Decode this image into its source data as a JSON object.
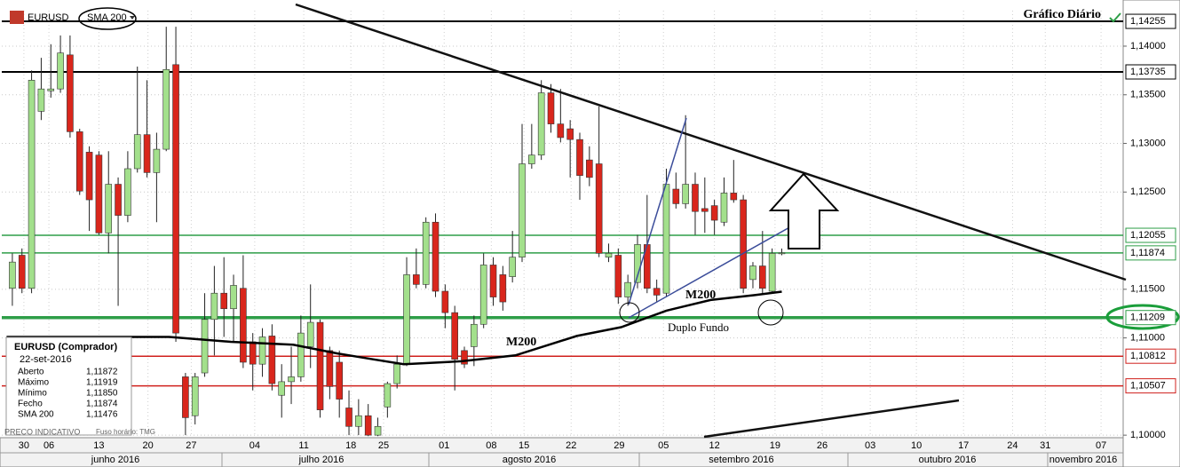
{
  "chart_data": {
    "type": "candlestick",
    "title": "Gráfico Diário",
    "symbol": "EURUSD",
    "indicator": "SMA 200",
    "up_color": "#a3e08c",
    "down_color": "#d9261c",
    "open": [
      1.1151,
      1.1185,
      1.1151,
      1.1333,
      1.1354,
      1.1356,
      1.1391,
      1.1312,
      1.1291,
      1.1288,
      1.1208,
      1.1258,
      1.1226,
      1.1274,
      1.1309,
      1.127,
      1.1294,
      1.1381,
      1.106,
      1.102,
      1.1064,
      1.1119,
      1.1146,
      1.113,
      1.1151,
      1.1096,
      1.1073,
      1.1102,
      1.1041,
      1.1055,
      1.106,
      1.1091,
      1.1116,
      1.1087,
      1.1075,
      1.1028,
      1.1009,
      1.102,
      1.1,
      1.1029,
      1.1053,
      1.1073,
      1.1165,
      1.1155,
      1.1219,
      1.1148,
      1.1126,
      1.1087,
      1.1091,
      1.1114,
      1.1175,
      1.1165,
      1.1163,
      1.1183,
      1.1279,
      1.1288,
      1.1352,
      1.132,
      1.1315,
      1.1304,
      1.1283,
      1.1279,
      1.1183,
      1.1185,
      1.1142,
      1.1157,
      1.1196,
      1.1151,
      1.1146,
      1.1253,
      1.1238,
      1.1258,
      1.1233,
      1.1236,
      1.1219,
      1.1249,
      1.1242,
      1.116,
      1.1174,
      1.1148,
      1.11872
    ],
    "high": [
      1.1187,
      1.1192,
      1.1375,
      1.1388,
      1.1402,
      1.1411,
      1.1411,
      1.1315,
      1.1297,
      1.1292,
      1.1292,
      1.1265,
      1.1292,
      1.1379,
      1.1365,
      1.1311,
      1.142,
      1.142,
      1.1064,
      1.1064,
      1.1146,
      1.1174,
      1.1183,
      1.1165,
      1.1185,
      1.1105,
      1.111,
      1.1114,
      1.1073,
      1.1091,
      1.1123,
      1.1155,
      1.1119,
      1.1091,
      1.1087,
      1.1046,
      1.1037,
      1.1032,
      1.1018,
      1.1055,
      1.1082,
      1.1183,
      1.1192,
      1.1224,
      1.1228,
      1.1155,
      1.1133,
      1.1091,
      1.1123,
      1.1187,
      1.1183,
      1.1174,
      1.121,
      1.132,
      1.132,
      1.1365,
      1.1361,
      1.1356,
      1.1324,
      1.1311,
      1.1297,
      1.1338,
      1.1197,
      1.1192,
      1.1165,
      1.1206,
      1.1247,
      1.116,
      1.1274,
      1.127,
      1.1329,
      1.127,
      1.1265,
      1.1242,
      1.1265,
      1.1283,
      1.1247,
      1.1178,
      1.121,
      1.1192,
      1.11919
    ],
    "low": [
      1.1133,
      1.1146,
      1.1146,
      1.1324,
      1.1347,
      1.1352,
      1.1306,
      1.1247,
      1.121,
      1.1206,
      1.1187,
      1.1133,
      1.1219,
      1.127,
      1.1265,
      1.1219,
      1.1292,
      1.1096,
      1.1,
      1.1011,
      1.106,
      1.1082,
      1.1101,
      1.1096,
      1.1069,
      1.1046,
      1.106,
      1.1046,
      1.1018,
      1.1032,
      1.1055,
      1.1069,
      1.1018,
      1.1037,
      1.1018,
      1.1,
      1.1,
      1.0999,
      1.0999,
      1.1018,
      1.1048,
      1.1071,
      1.1151,
      1.1151,
      1.1142,
      1.111,
      1.1046,
      1.1069,
      1.1071,
      1.111,
      1.1133,
      1.1128,
      1.1157,
      1.1178,
      1.1274,
      1.1283,
      1.1311,
      1.1301,
      1.1265,
      1.1242,
      1.1256,
      1.1183,
      1.1178,
      1.1135,
      1.1133,
      1.1151,
      1.1146,
      1.1137,
      1.1142,
      1.1233,
      1.1233,
      1.1206,
      1.1208,
      1.1206,
      1.1215,
      1.1239,
      1.1146,
      1.1151,
      1.1146,
      1.1146,
      1.1185
    ],
    "close": [
      1.1178,
      1.1151,
      1.1365,
      1.1356,
      1.1356,
      1.1393,
      1.1312,
      1.1251,
      1.1242,
      1.1208,
      1.1258,
      1.1226,
      1.1274,
      1.1309,
      1.127,
      1.1294,
      1.1376,
      1.1105,
      1.1018,
      1.106,
      1.1119,
      1.1146,
      1.113,
      1.1154,
      1.1075,
      1.1073,
      1.1101,
      1.1053,
      1.1055,
      1.106,
      1.1105,
      1.1116,
      1.1026,
      1.105,
      1.1037,
      1.1009,
      1.102,
      1.1,
      1.1009,
      1.1053,
      1.1073,
      1.1165,
      1.1155,
      1.1219,
      1.1148,
      1.1126,
      1.1078,
      1.1073,
      1.1114,
      1.1175,
      1.1142,
      1.1137,
      1.1183,
      1.1279,
      1.1288,
      1.1352,
      1.132,
      1.1306,
      1.1304,
      1.1267,
      1.1265,
      1.1187,
      1.1187,
      1.1142,
      1.1157,
      1.1196,
      1.1151,
      1.1144,
      1.1258,
      1.1238,
      1.1258,
      1.123,
      1.123,
      1.1221,
      1.1249,
      1.1242,
      1.1151,
      1.1174,
      1.1151,
      1.1187,
      1.11874
    ],
    "sma": {
      "color": "#000000",
      "x": [
        -0.6,
        7.9,
        16.3,
        22.7,
        29.2,
        33.8,
        37.5,
        40.7,
        46.7,
        52.3,
        58.7,
        63.3,
        68.0,
        72.6,
        77.2,
        80
      ],
      "values": [
        1.1101,
        1.1101,
        1.1101,
        1.1096,
        1.1093,
        1.1084,
        1.1078,
        1.1073,
        1.1076,
        1.1082,
        1.1102,
        1.1111,
        1.1128,
        1.1139,
        1.1144,
        1.11476
      ]
    },
    "xlim": [
      -1.1,
      115.5
    ],
    "ylim": [
      1.09983,
      1.14365
    ],
    "xticks": [
      {
        "value": 1.2,
        "label": "30"
      },
      {
        "value": 3.8,
        "label": "06"
      },
      {
        "value": 9.0,
        "label": "13"
      },
      {
        "value": 14.1,
        "label": "20"
      },
      {
        "value": 18.6,
        "label": "27"
      },
      {
        "value": 25.2,
        "label": "04"
      },
      {
        "value": 30.3,
        "label": "11"
      },
      {
        "value": 35.2,
        "label": "18"
      },
      {
        "value": 38.6,
        "label": "25"
      },
      {
        "value": 44.9,
        "label": "01"
      },
      {
        "value": 49.8,
        "label": "08"
      },
      {
        "value": 53.2,
        "label": "15"
      },
      {
        "value": 58.1,
        "label": "22"
      },
      {
        "value": 63.1,
        "label": "29"
      },
      {
        "value": 67.7,
        "label": "05"
      },
      {
        "value": 73.0,
        "label": "12"
      },
      {
        "value": 79.3,
        "label": "19"
      },
      {
        "value": 84.2,
        "label": "26"
      },
      {
        "value": 89.2,
        "label": "03"
      },
      {
        "value": 94.0,
        "label": "10"
      },
      {
        "value": 98.9,
        "label": "17"
      },
      {
        "value": 104.0,
        "label": "24"
      },
      {
        "value": 107.4,
        "label": "31"
      },
      {
        "value": 113.2,
        "label": "07"
      }
    ],
    "months": [
      "junho 2016",
      "julho 2016",
      "agosto 2016",
      "setembro 2016",
      "outubro 2016",
      "novembro 2016"
    ],
    "yticks": [
      {
        "value": 1.14,
        "label": "1,14000"
      },
      {
        "value": 1.135,
        "label": "1,13500"
      },
      {
        "value": 1.13,
        "label": "1,13000"
      },
      {
        "value": 1.125,
        "label": "1,12500"
      },
      {
        "value": 1.115,
        "label": "1,11500"
      },
      {
        "value": 1.11,
        "label": "1,11000"
      },
      {
        "value": 1.1,
        "label": "1,10000"
      }
    ],
    "levels": [
      {
        "value": 1.14255,
        "label": "1,14255",
        "color": "#000000",
        "width": 2
      },
      {
        "value": 1.13735,
        "label": "1,13735",
        "color": "#000000",
        "width": 2
      },
      {
        "value": 1.12055,
        "label": "1,12055",
        "color": "#2e9e48",
        "width": 1.5
      },
      {
        "value": 1.11874,
        "label": "1,11874",
        "color": "#2e9e48",
        "width": 1.5
      },
      {
        "value": 1.11209,
        "label": "1,11209",
        "color": "#2e9e48",
        "width": 3.5
      },
      {
        "value": 1.10812,
        "label": "1,10812",
        "color": "#d0201c",
        "width": 1.5
      },
      {
        "value": 1.10507,
        "label": "1,10507",
        "color": "#d0201c",
        "width": 1.5
      }
    ],
    "annotations": [
      "M200",
      "M200",
      "Duplo Fundo"
    ],
    "grid": true
  },
  "info_panel": {
    "title": "EURUSD (Comprador)",
    "date": "22-set-2016",
    "rows": [
      [
        "Aberto",
        "1,11872"
      ],
      [
        "Máximo",
        "1,11919"
      ],
      [
        "Mínimo",
        "1,11850"
      ],
      [
        "Fecho",
        "1,11874"
      ],
      [
        "SMA 200",
        "1,11476"
      ]
    ]
  },
  "footer": {
    "note": "PRECO INDICATIVO",
    "timezone": "Fuso horário: TMG"
  }
}
